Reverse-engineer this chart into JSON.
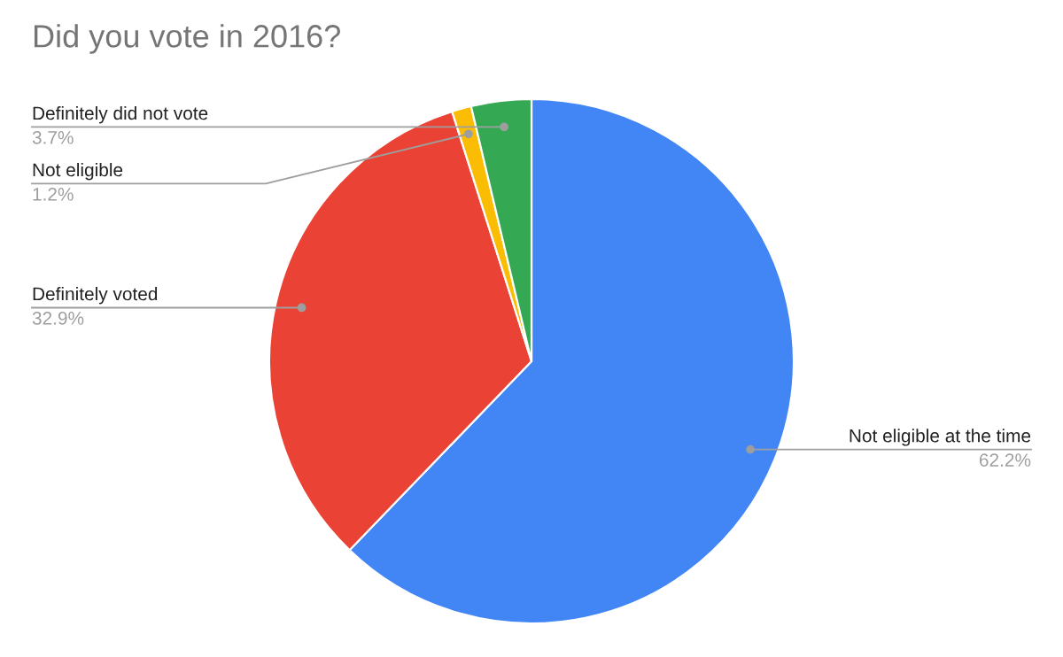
{
  "chart_data": {
    "type": "pie",
    "title": "Did you vote in 2016?",
    "categories": [
      "Not eligible at the time",
      "Definitely voted",
      "Not eligible",
      "Definitely did not vote"
    ],
    "values": [
      62.2,
      32.9,
      1.2,
      3.7
    ],
    "value_labels": [
      "62.2%",
      "32.9%",
      "1.2%",
      "3.7%"
    ],
    "colors": [
      "#4285f4",
      "#ea4335",
      "#fbbc04",
      "#34a853"
    ],
    "legend": false
  }
}
